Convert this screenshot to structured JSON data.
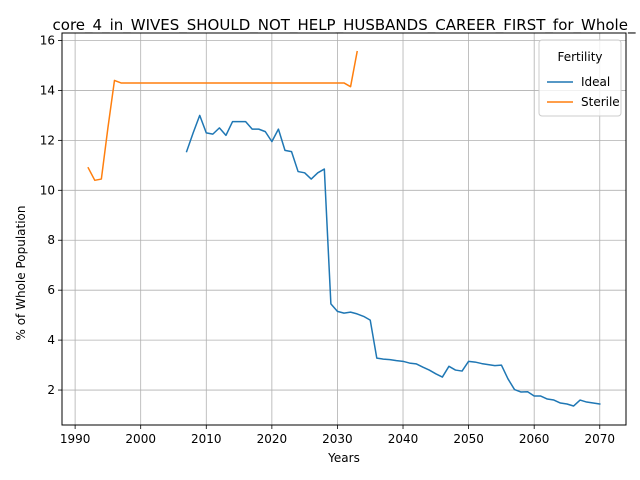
{
  "chart_data": {
    "type": "line",
    "title": "core_4_in_WIVES_SHOULD_NOT_HELP_HUSBANDS_CAREER_FIRST_for_Whole_",
    "xlabel": "Years",
    "ylabel": "% of Whole Population",
    "xlim": [
      1988,
      2074
    ],
    "ylim": [
      0.6,
      16.3
    ],
    "x_ticks": [
      1990,
      2000,
      2010,
      2020,
      2030,
      2040,
      2050,
      2060,
      2070
    ],
    "y_ticks": [
      2,
      4,
      6,
      8,
      10,
      12,
      14,
      16
    ],
    "grid": true,
    "legend": {
      "title": "Fertility",
      "placement": "top-right"
    },
    "series": [
      {
        "name": "Ideal",
        "color": "#1f77b4",
        "points": [
          [
            2007,
            11.55
          ],
          [
            2008,
            12.3
          ],
          [
            2009,
            13.0
          ],
          [
            2010,
            12.3
          ],
          [
            2011,
            12.25
          ],
          [
            2012,
            12.5
          ],
          [
            2013,
            12.2
          ],
          [
            2014,
            12.75
          ],
          [
            2015,
            12.75
          ],
          [
            2016,
            12.75
          ],
          [
            2017,
            12.45
          ],
          [
            2018,
            12.45
          ],
          [
            2019,
            12.35
          ],
          [
            2020,
            11.95
          ],
          [
            2021,
            12.45
          ],
          [
            2022,
            11.6
          ],
          [
            2023,
            11.55
          ],
          [
            2024,
            10.75
          ],
          [
            2025,
            10.7
          ],
          [
            2026,
            10.45
          ],
          [
            2027,
            10.7
          ],
          [
            2028,
            10.85
          ],
          [
            2029,
            5.45
          ],
          [
            2030,
            5.15
          ],
          [
            2031,
            5.08
          ],
          [
            2032,
            5.12
          ],
          [
            2033,
            5.05
          ],
          [
            2034,
            4.95
          ],
          [
            2035,
            4.8
          ],
          [
            2036,
            3.28
          ],
          [
            2037,
            3.24
          ],
          [
            2038,
            3.22
          ],
          [
            2039,
            3.18
          ],
          [
            2040,
            3.15
          ],
          [
            2041,
            3.08
          ],
          [
            2042,
            3.05
          ],
          [
            2043,
            2.92
          ],
          [
            2044,
            2.8
          ],
          [
            2045,
            2.65
          ],
          [
            2046,
            2.52
          ],
          [
            2047,
            2.95
          ],
          [
            2048,
            2.8
          ],
          [
            2049,
            2.76
          ],
          [
            2050,
            3.15
          ],
          [
            2051,
            3.12
          ],
          [
            2052,
            3.06
          ],
          [
            2053,
            3.02
          ],
          [
            2054,
            2.98
          ],
          [
            2055,
            3.0
          ],
          [
            2056,
            2.45
          ],
          [
            2057,
            2.02
          ],
          [
            2058,
            1.92
          ],
          [
            2059,
            1.93
          ],
          [
            2060,
            1.76
          ],
          [
            2061,
            1.76
          ],
          [
            2062,
            1.64
          ],
          [
            2063,
            1.6
          ],
          [
            2064,
            1.48
          ],
          [
            2065,
            1.44
          ],
          [
            2066,
            1.36
          ],
          [
            2067,
            1.6
          ],
          [
            2068,
            1.52
          ],
          [
            2069,
            1.48
          ],
          [
            2070,
            1.44
          ]
        ]
      },
      {
        "name": "Sterile",
        "color": "#ff7f0e",
        "points": [
          [
            1992,
            10.9
          ],
          [
            1993,
            10.4
          ],
          [
            1994,
            10.45
          ],
          [
            1995,
            12.5
          ],
          [
            1996,
            14.4
          ],
          [
            1997,
            14.3
          ],
          [
            1998,
            14.3
          ],
          [
            2000,
            14.3
          ],
          [
            2005,
            14.3
          ],
          [
            2010,
            14.3
          ],
          [
            2015,
            14.3
          ],
          [
            2020,
            14.3
          ],
          [
            2025,
            14.3
          ],
          [
            2030,
            14.3
          ],
          [
            2031,
            14.3
          ],
          [
            2032,
            14.15
          ],
          [
            2033,
            15.55
          ]
        ]
      }
    ]
  }
}
